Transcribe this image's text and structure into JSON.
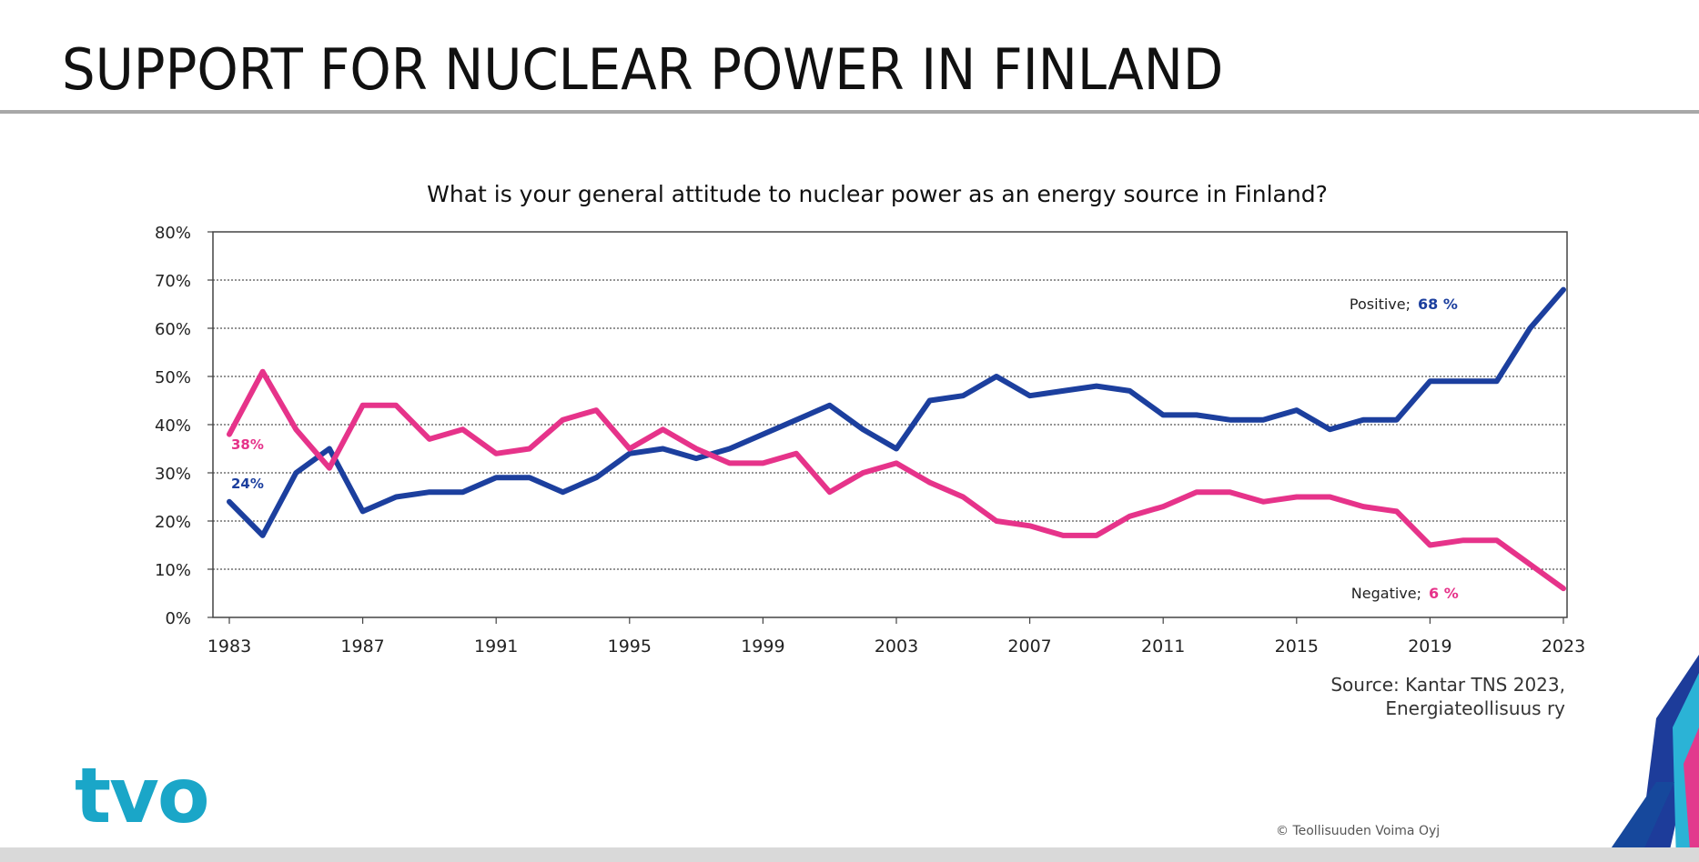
{
  "slide": {
    "title": "SUPPORT FOR NUCLEAR POWER IN FINLAND",
    "source_line1": "Source: Kantar TNS 2023,",
    "source_line2": "Energiateollisuus  ry",
    "logo_text": "tvo",
    "copyright": "© Teollisuuden Voima Oyj"
  },
  "colors": {
    "positive": "#1c3f9e",
    "negative": "#e6338a",
    "logo": "#1aa6c8",
    "grid": "#555555"
  },
  "chart_data": {
    "type": "line",
    "title": "What is your general attitude to nuclear power as an energy source in Finland?",
    "xlabel": "",
    "ylabel": "",
    "xlim": [
      1983,
      2023
    ],
    "ylim": [
      0,
      80
    ],
    "grid": true,
    "legend": "none",
    "x_tick_labels": [
      "1983",
      "1987",
      "1991",
      "1995",
      "1999",
      "2003",
      "2007",
      "2011",
      "2015",
      "2019",
      "2023"
    ],
    "y_tick_labels": [
      "80%",
      "70%",
      "60%",
      "50%",
      "40%",
      "30%",
      "20%",
      "10%",
      "0%"
    ],
    "x": [
      1983,
      1984,
      1985,
      1986,
      1987,
      1988,
      1989,
      1990,
      1991,
      1992,
      1993,
      1994,
      1995,
      1996,
      1997,
      1998,
      1999,
      2000,
      2001,
      2002,
      2003,
      2004,
      2005,
      2006,
      2007,
      2008,
      2009,
      2010,
      2011,
      2012,
      2013,
      2014,
      2015,
      2016,
      2017,
      2018,
      2019,
      2020,
      2021,
      2022,
      2023
    ],
    "series": [
      {
        "name": "Positive",
        "values": [
          24,
          17,
          30,
          35,
          22,
          25,
          26,
          26,
          29,
          29,
          26,
          29,
          34,
          35,
          33,
          35,
          38,
          41,
          44,
          39,
          35,
          45,
          46,
          50,
          46,
          47,
          48,
          47,
          42,
          42,
          41,
          41,
          43,
          39,
          41,
          41,
          49,
          49,
          49,
          60,
          68
        ]
      },
      {
        "name": "Negative",
        "values": [
          38,
          51,
          39,
          31,
          44,
          44,
          37,
          39,
          34,
          35,
          41,
          43,
          35,
          39,
          35,
          32,
          32,
          34,
          26,
          30,
          32,
          28,
          25,
          20,
          19,
          17,
          17,
          21,
          23,
          26,
          26,
          24,
          25,
          25,
          23,
          22,
          15,
          16,
          16,
          11,
          6
        ]
      }
    ],
    "annotations": [
      {
        "series": "Positive",
        "text": "Positive;",
        "value_text": "68 %"
      },
      {
        "series": "Negative",
        "text": "Negative;",
        "value_text": "6 %"
      },
      {
        "series": "Positive",
        "value_text": "24%"
      },
      {
        "series": "Negative",
        "value_text": "38%"
      }
    ]
  }
}
